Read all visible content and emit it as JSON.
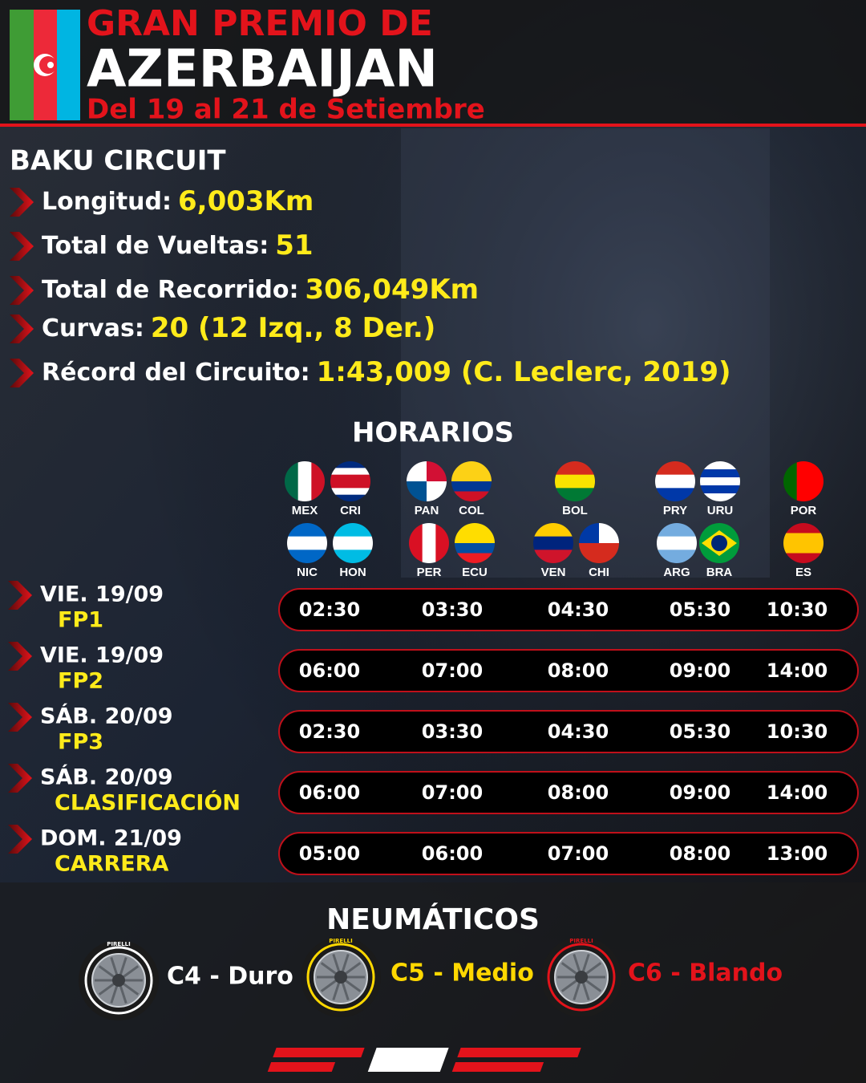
{
  "header": {
    "title_line1": "GRAN PREMIO DE",
    "title_line2": "AZERBAIJAN",
    "dates": "Del 19 al 21 de Setiembre"
  },
  "circuit": {
    "name": "BAKU CIRCUIT",
    "facts": [
      {
        "label": "Longitud:",
        "value": "6,003Km"
      },
      {
        "label": "Total de Vueltas:",
        "value": "51"
      },
      {
        "label": "Total de Recorrido:",
        "value": "306,049Km"
      },
      {
        "label": "Curvas:",
        "value": "20 (12 Izq., 8 Der.)"
      },
      {
        "label": "Récord del Circuito:",
        "value": "1:43,009 (C. Leclerc, 2019)"
      }
    ]
  },
  "schedule": {
    "title": "HORARIOS",
    "flag_rows": [
      [
        {
          "code": "MEX",
          "colors": [
            "#006847",
            "#ffffff",
            "#ce1126"
          ],
          "dir": "v"
        },
        {
          "code": "CRI",
          "colors": [
            "#002b7f",
            "#ffffff",
            "#ce1126",
            "#ce1126",
            "#ffffff",
            "#002b7f"
          ],
          "dir": "h"
        },
        {
          "code": "PAN",
          "colors": [
            "#ffffff",
            "#d21034",
            "#005293",
            "#ffffff"
          ],
          "dir": "q"
        },
        {
          "code": "COL",
          "colors": [
            "#fcd116",
            "#fcd116",
            "#003893",
            "#ce1126"
          ],
          "dir": "h"
        },
        {
          "code": "BOL",
          "colors": [
            "#d52b1e",
            "#f9e300",
            "#007934"
          ],
          "dir": "h"
        },
        {
          "code": "PRY",
          "colors": [
            "#d52b1e",
            "#ffffff",
            "#0038a8"
          ],
          "dir": "h"
        },
        {
          "code": "URU",
          "colors": [
            "#ffffff",
            "#0038a8",
            "#ffffff",
            "#0038a8",
            "#ffffff"
          ],
          "dir": "h"
        },
        {
          "code": "POR",
          "colors": [
            "#006600",
            "#ff0000",
            "#ff0000"
          ],
          "dir": "v"
        }
      ],
      [
        {
          "code": "NIC",
          "colors": [
            "#0067c6",
            "#ffffff",
            "#0067c6"
          ],
          "dir": "h"
        },
        {
          "code": "HON",
          "colors": [
            "#00bce4",
            "#ffffff",
            "#00bce4"
          ],
          "dir": "h"
        },
        {
          "code": "PER",
          "colors": [
            "#d91023",
            "#ffffff",
            "#d91023"
          ],
          "dir": "v"
        },
        {
          "code": "ECU",
          "colors": [
            "#ffdd00",
            "#ffdd00",
            "#034ea2",
            "#ed1c24"
          ],
          "dir": "h"
        },
        {
          "code": "VEN",
          "colors": [
            "#ffcc00",
            "#00247d",
            "#cf142b"
          ],
          "dir": "h"
        },
        {
          "code": "CHI",
          "colors": [
            "#0039a6",
            "#ffffff",
            "#d52b1e",
            "#d52b1e"
          ],
          "dir": "q"
        },
        {
          "code": "ARG",
          "colors": [
            "#74acdf",
            "#ffffff",
            "#74acdf"
          ],
          "dir": "h"
        },
        {
          "code": "BRA",
          "colors": [
            "#009c3b",
            "#ffdf00",
            "#002776"
          ],
          "dir": "d"
        },
        {
          "code": "ES",
          "colors": [
            "#c60b1e",
            "#ffc400",
            "#ffc400",
            "#c60b1e"
          ],
          "dir": "h"
        }
      ]
    ],
    "sessions": [
      {
        "day": "VIE. 19/09",
        "name": "FP1",
        "times": [
          "02:30",
          "03:30",
          "04:30",
          "05:30",
          "10:30"
        ]
      },
      {
        "day": "VIE. 19/09",
        "name": "FP2",
        "times": [
          "06:00",
          "07:00",
          "08:00",
          "09:00",
          "14:00"
        ]
      },
      {
        "day": "SÁB. 20/09",
        "name": "FP3",
        "times": [
          "02:30",
          "03:30",
          "04:30",
          "05:30",
          "10:30"
        ]
      },
      {
        "day": "SÁB. 20/09",
        "name": "CLASIFICACIÓN",
        "times": [
          "06:00",
          "07:00",
          "08:00",
          "09:00",
          "14:00"
        ]
      },
      {
        "day": "DOM. 21/09",
        "name": "CARRERA",
        "times": [
          "05:00",
          "06:00",
          "07:00",
          "08:00",
          "13:00"
        ]
      }
    ]
  },
  "tyres": {
    "title": "NEUMÁTICOS",
    "brand": "PIRELLI",
    "items": [
      {
        "label": "C4 - Duro",
        "color": "#ffffff"
      },
      {
        "label": "C5 - Medio",
        "color": "#ffd800"
      },
      {
        "label": "C6 - Blando",
        "color": "#e3131b"
      }
    ]
  }
}
